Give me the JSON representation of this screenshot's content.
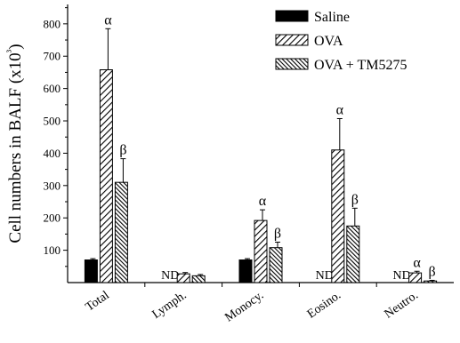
{
  "chart_data": {
    "type": "bar",
    "ylabel": "Cell numbers in BALF (x10³)",
    "xlabel": "",
    "title": "",
    "ylim": [
      0,
      860
    ],
    "yticks": [
      100,
      200,
      300,
      400,
      500,
      600,
      700,
      800
    ],
    "categories": [
      "Total",
      "Lymph.",
      "Monocy.",
      "Eosino.",
      "Neutro."
    ],
    "series": [
      {
        "name": "Saline",
        "fill": "solid",
        "color": "#000000",
        "values": [
          70,
          0,
          70,
          0,
          0
        ],
        "errors": [
          4,
          0,
          4,
          0,
          0
        ],
        "labels": [
          "",
          "ND",
          "",
          "ND",
          "ND"
        ]
      },
      {
        "name": "OVA",
        "fill": "hatch-sparse",
        "color": "#000000",
        "values": [
          658,
          27,
          192,
          410,
          30
        ],
        "errors": [
          127,
          4,
          33,
          97,
          5
        ],
        "labels": [
          "α",
          "",
          "α",
          "α",
          "α"
        ]
      },
      {
        "name": "OVA + TM5275",
        "fill": "hatch-dense",
        "color": "#000000",
        "values": [
          310,
          21,
          108,
          175,
          5
        ],
        "errors": [
          73,
          4,
          17,
          55,
          2
        ],
        "labels": [
          "β",
          "",
          "β",
          "β",
          "β"
        ]
      }
    ],
    "legend_position": "top-right",
    "grid": false
  }
}
